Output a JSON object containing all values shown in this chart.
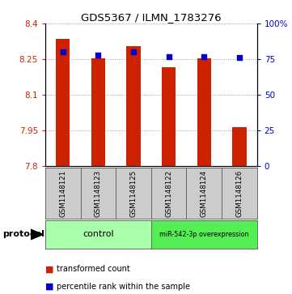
{
  "title": "GDS5367 / ILMN_1783276",
  "samples": [
    "GSM1148121",
    "GSM1148123",
    "GSM1148125",
    "GSM1148122",
    "GSM1148124",
    "GSM1148126"
  ],
  "transformed_counts": [
    8.335,
    8.255,
    8.305,
    8.215,
    8.255,
    7.965
  ],
  "percentile_ranks": [
    80,
    78,
    80,
    77,
    77,
    76
  ],
  "ylim_left": [
    7.8,
    8.4
  ],
  "ylim_right": [
    0,
    100
  ],
  "yticks_left": [
    7.8,
    7.95,
    8.1,
    8.25,
    8.4
  ],
  "ytick_labels_left": [
    "7.8",
    "7.95",
    "8.1",
    "8.25",
    "8.4"
  ],
  "yticks_right": [
    0,
    25,
    50,
    75,
    100
  ],
  "ytick_labels_right": [
    "0",
    "25",
    "50",
    "75",
    "100%"
  ],
  "bar_color": "#cc2200",
  "dot_color": "#0000cc",
  "groups": [
    {
      "label": "control",
      "color": "#aaffaa"
    },
    {
      "label": "miR-542-3p overexpression",
      "color": "#55ee55"
    }
  ],
  "protocol_label": "protocol",
  "legend_bar_label": "transformed count",
  "legend_dot_label": "percentile rank within the sample",
  "grid_color": "#888888",
  "background_color": "#ffffff",
  "plot_bg_color": "#ffffff",
  "bar_width": 0.4,
  "base_value": 7.8,
  "sample_box_color": "#cccccc",
  "sample_box_edge_color": "#555555"
}
